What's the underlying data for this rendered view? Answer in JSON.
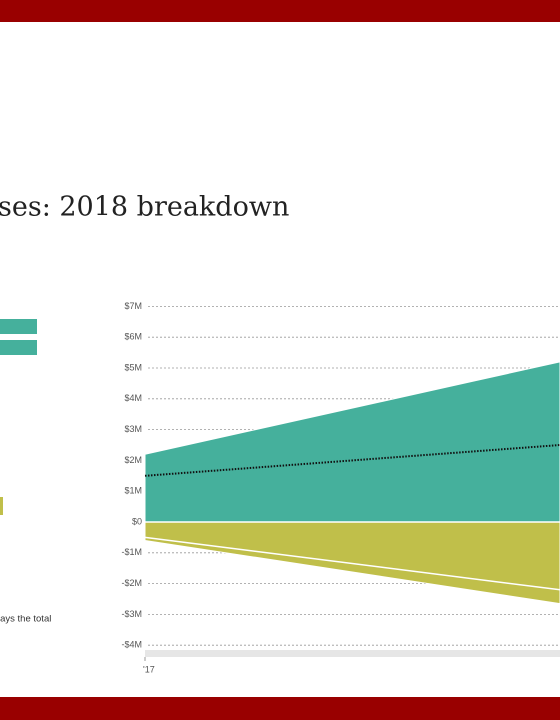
{
  "chart_data": {
    "type": "area",
    "title": "ses: 2018 breakdown",
    "annotation": "lays the total",
    "categories": [
      "'17",
      null
    ],
    "series": [
      {
        "type": "area",
        "color": "#45b09c",
        "values": [
          2200000,
          5200000
        ]
      },
      {
        "type": "area",
        "color": "#c0bf4a",
        "values": [
          -600000,
          -2650000
        ]
      },
      {
        "type": "line",
        "style": "dotted",
        "color": "#111111",
        "values": [
          1500000,
          2500000
        ]
      },
      {
        "type": "line",
        "color": "#ffffff",
        "values": [
          -500000,
          -2200000
        ]
      }
    ],
    "ylim": [
      -4000000,
      7000000
    ],
    "yticks": [
      {
        "value": 7000000,
        "label": "$7M"
      },
      {
        "value": 6000000,
        "label": "$6M"
      },
      {
        "value": 5000000,
        "label": "$5M"
      },
      {
        "value": 4000000,
        "label": "$4M"
      },
      {
        "value": 3000000,
        "label": "$3M"
      },
      {
        "value": 2000000,
        "label": "$2M"
      },
      {
        "value": 1000000,
        "label": "$1M"
      },
      {
        "value": 0,
        "label": "$0"
      },
      {
        "value": -1000000,
        "label": "-$1M"
      },
      {
        "value": -2000000,
        "label": "-$2M"
      },
      {
        "value": -3000000,
        "label": "-$3M"
      },
      {
        "value": -4000000,
        "label": "-$4M"
      }
    ],
    "grid": true
  }
}
